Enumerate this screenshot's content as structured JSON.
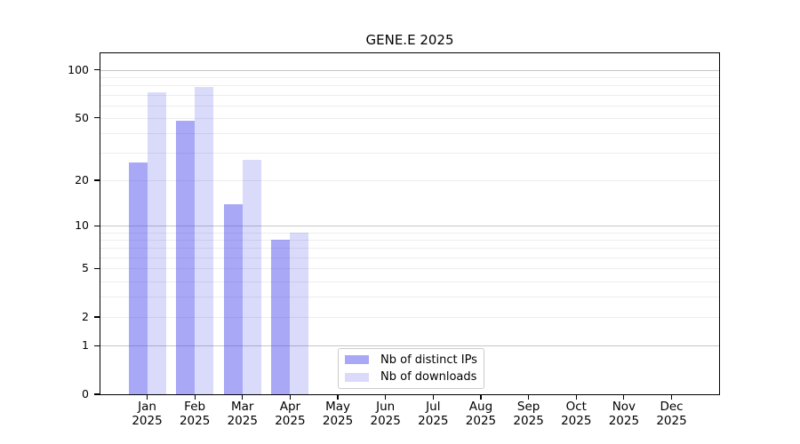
{
  "chart_data": {
    "type": "bar",
    "title": "GENE.E 2025",
    "categories": [
      "Jan",
      "Feb",
      "Mar",
      "Apr",
      "May",
      "Jun",
      "Jul",
      "Aug",
      "Sep",
      "Oct",
      "Nov",
      "Dec"
    ],
    "category_year": "2025",
    "series": [
      {
        "name": "Nb of distinct IPs",
        "color": "rgba(70,70,235,0.47)",
        "values": [
          26,
          48,
          14,
          8,
          null,
          null,
          null,
          null,
          null,
          null,
          null,
          null
        ]
      },
      {
        "name": "Nb of downloads",
        "color": "rgba(70,70,235,0.20)",
        "values": [
          72,
          78,
          27,
          9,
          null,
          null,
          null,
          null,
          null,
          null,
          null,
          null
        ]
      }
    ],
    "yscale": "log1p",
    "ylim": [
      0,
      127
    ],
    "yticks": [
      0,
      1,
      2,
      5,
      10,
      20,
      50,
      100
    ],
    "major_gridlines": [
      1,
      10,
      100
    ],
    "minor_gridlines": [
      2,
      3,
      4,
      5,
      6,
      7,
      8,
      9,
      20,
      30,
      40,
      50,
      60,
      70,
      80,
      90
    ],
    "grid": true,
    "legend_position": "lower center-right inside plot",
    "colors": {
      "major_grid": "#c6c6c6",
      "minor_grid": "#ededed",
      "spine": "#000000",
      "text": "#000000",
      "background": "#ffffff"
    }
  }
}
